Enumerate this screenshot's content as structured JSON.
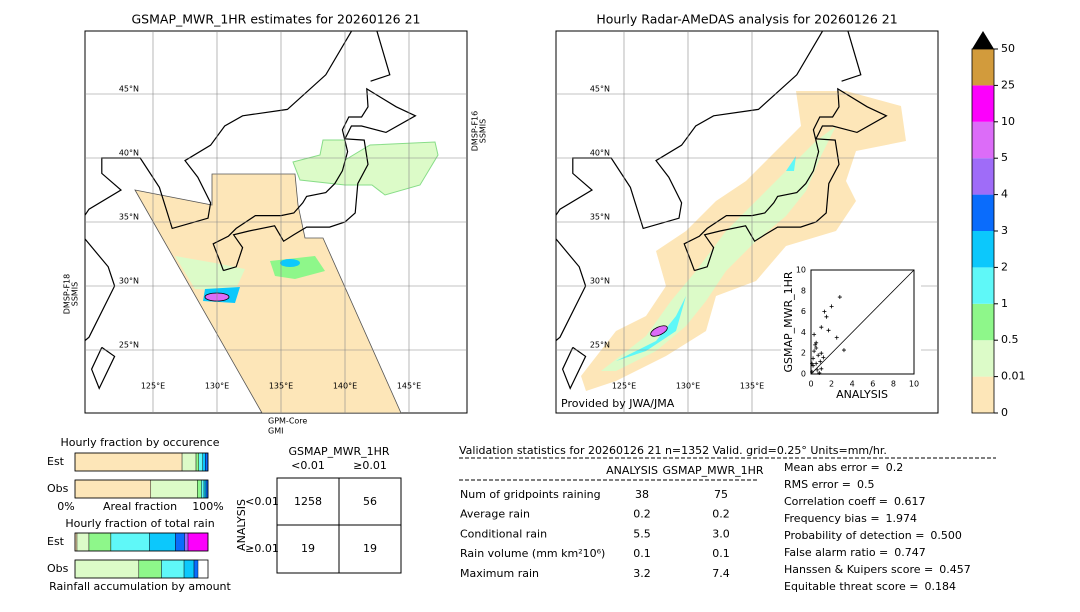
{
  "left_map": {
    "title": "GSMAP_MWR_1HR estimates for 20260126 21",
    "lat_labels": [
      "45°N",
      "40°N",
      "35°N",
      "30°N",
      "25°N"
    ],
    "lon_labels": [
      "125°E",
      "130°E",
      "135°E",
      "140°E",
      "145°E"
    ],
    "sensors": [
      "DMSP-F16",
      "SSMIS",
      "DMSP-F18",
      "SSMIS",
      "GPM-Core",
      "GMI"
    ]
  },
  "right_map": {
    "title": "Hourly Radar-AMeDAS analysis for 20260126 21",
    "lat_labels": [
      "45°N",
      "40°N",
      "35°N",
      "30°N",
      "25°N"
    ],
    "lon_labels": [
      "125°E",
      "130°E",
      "135°E"
    ],
    "credit": "Provided by JWA/JMA"
  },
  "scatter": {
    "xlabel": "ANALYSIS",
    "ylabel": "GSMAP_MWR_1HR",
    "lim": [
      0,
      10
    ],
    "ticks": [
      0,
      2,
      4,
      6,
      8,
      10
    ],
    "x": [
      2.8,
      2.0,
      1.3,
      1.5,
      1.0,
      1.7,
      2.5,
      0.5,
      1.0,
      0.3,
      3.2,
      0.2,
      0.5,
      1.0,
      0.1,
      0.4,
      0.7,
      0.2,
      0.6,
      0.9,
      1.2,
      0.3,
      0.8,
      0.1,
      0.5
    ],
    "y": [
      7.4,
      6.5,
      6.0,
      5.5,
      4.5,
      4.2,
      3.5,
      2.5,
      2.0,
      3.8,
      2.3,
      1.5,
      1.0,
      0.5,
      0.2,
      2.8,
      1.8,
      0.8,
      0.4,
      1.2,
      1.6,
      2.2,
      0.1,
      1.0,
      3.0
    ]
  },
  "colorbar": {
    "labels": [
      0,
      0.01,
      0.5,
      1,
      2,
      3,
      4,
      5,
      10,
      25,
      50
    ],
    "colors": [
      "#fde6b8",
      "#dcfbc8",
      "#8ef78a",
      "#5ff8f8",
      "#0cc8fc",
      "#0a6cfc",
      "#9f6cf8",
      "#dc6cf8",
      "#fc00fc",
      "#d29b3c"
    ]
  },
  "fraction_charts": [
    {
      "title": "Hourly fraction by occurence",
      "rows": [
        {
          "label": "Est",
          "values": [
            0.805,
            0.105,
            0.02,
            0.03,
            0.02,
            0.02
          ]
        },
        {
          "label": "Obs",
          "values": [
            0.57,
            0.35,
            0.03,
            0.02,
            0.015,
            0.015
          ]
        }
      ],
      "axis": [
        "0%",
        "Areal fraction",
        "100%"
      ]
    },
    {
      "title": "Hourly fraction of total rain",
      "rows": [
        {
          "label": "Est",
          "values": [
            0.015,
            0.09,
            0.165,
            0.29,
            0.195,
            0.07,
            0.025,
            0.0,
            0.15
          ]
        },
        {
          "label": "Obs",
          "values": [
            0.0,
            0.48,
            0.17,
            0.17,
            0.075,
            0.03
          ]
        }
      ],
      "axis": [
        "Rainfall accumulation by amount"
      ]
    }
  ],
  "contingency": {
    "title": "GSMAP_MWR_1HR",
    "cols": [
      "<0.01",
      "≥0.01"
    ],
    "rows": [
      "<0.01",
      "≥0.01"
    ],
    "axis": "ANALYSIS",
    "cells": [
      [
        1258,
        56
      ],
      [
        19,
        19
      ]
    ]
  },
  "validation": {
    "title": "Validation statistics for 20260126 21  n=1352 Valid. grid=0.25° Units=mm/hr.",
    "columns": [
      "ANALYSIS",
      "GSMAP_MWR_1HR"
    ],
    "rows": [
      {
        "label": "Num of gridpoints raining",
        "values": [
          "38",
          "75"
        ]
      },
      {
        "label": "Average rain",
        "values": [
          "0.2",
          "0.2"
        ]
      },
      {
        "label": "Conditional rain",
        "values": [
          "5.5",
          "3.0"
        ]
      },
      {
        "label": "Rain volume (mm km²10⁶)",
        "values": [
          "0.1",
          "0.1"
        ]
      },
      {
        "label": "Maximum rain",
        "values": [
          "3.2",
          "7.4"
        ]
      }
    ],
    "scores": [
      {
        "label": "Mean abs error =",
        "value": "0.2"
      },
      {
        "label": "RMS error =",
        "value": "0.5"
      },
      {
        "label": "Correlation coeff =",
        "value": "0.617"
      },
      {
        "label": "Frequency bias =",
        "value": "1.974"
      },
      {
        "label": "Probability of detection =",
        "value": "0.500"
      },
      {
        "label": "False alarm ratio =",
        "value": "0.747"
      },
      {
        "label": "Hanssen & Kuipers score =",
        "value": "0.457"
      },
      {
        "label": "Equitable threat score =",
        "value": "0.184"
      }
    ]
  }
}
